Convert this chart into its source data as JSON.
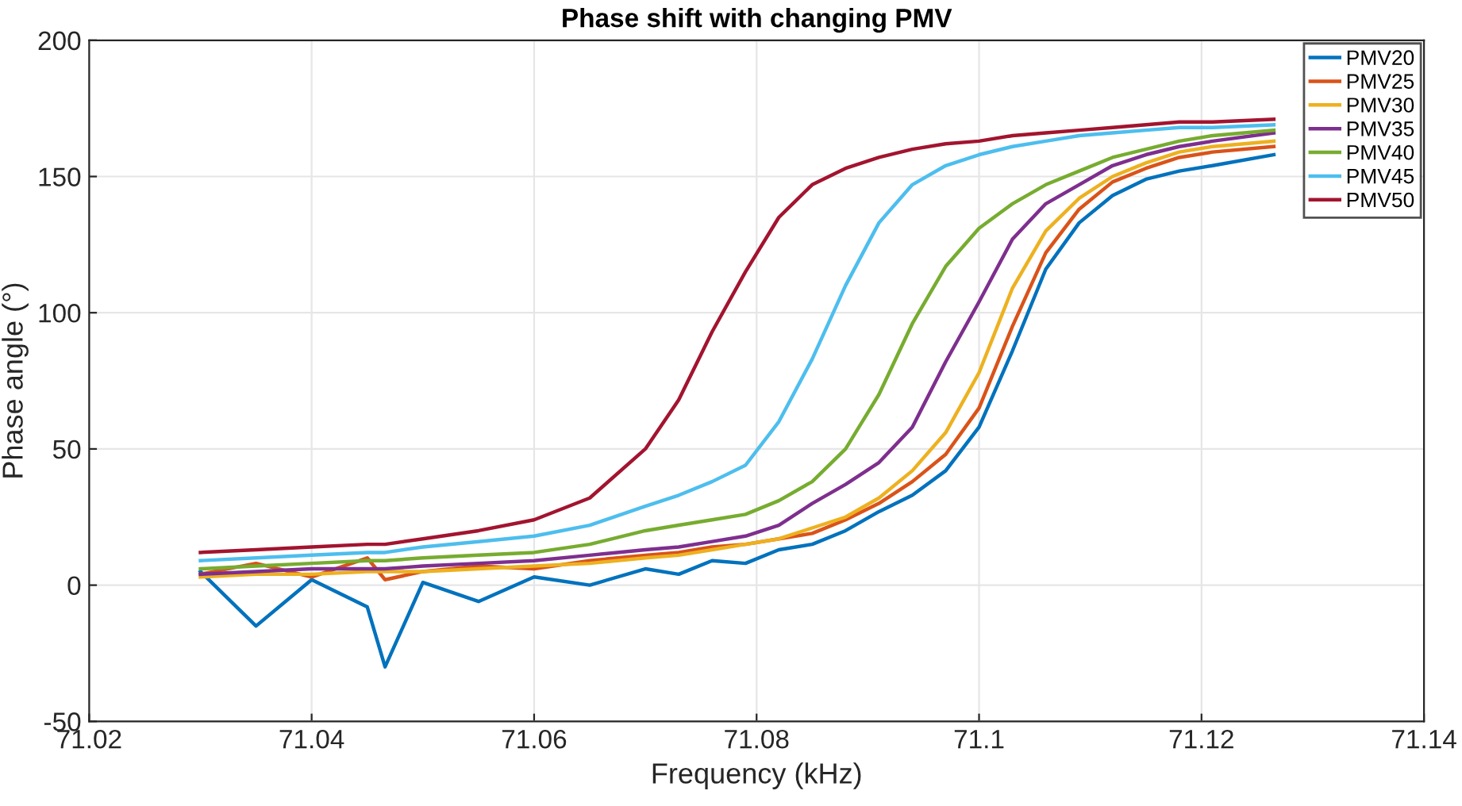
{
  "chart_data": {
    "type": "line",
    "title": "Phase shift with changing PMV",
    "xlabel": "Frequency (kHz)",
    "ylabel": "Phase angle (°)",
    "x": [
      71.03,
      71.035,
      71.04,
      71.045,
      71.0466,
      71.05,
      71.055,
      71.06,
      71.065,
      71.07,
      71.073,
      71.076,
      71.079,
      71.082,
      71.085,
      71.088,
      71.091,
      71.094,
      71.097,
      71.1,
      71.103,
      71.106,
      71.109,
      71.112,
      71.115,
      71.118,
      71.121,
      71.1265
    ],
    "series": [
      {
        "name": "PMV20",
        "color": "#0072bd",
        "values": [
          5,
          -15,
          2,
          -8,
          -30,
          1,
          -6,
          3,
          0,
          6,
          4,
          9,
          8,
          13,
          15,
          20,
          27,
          33,
          42,
          58,
          86,
          116,
          133,
          143,
          149,
          152,
          154,
          158
        ]
      },
      {
        "name": "PMV25",
        "color": "#d95319",
        "values": [
          4,
          8,
          3,
          10,
          2,
          5,
          7,
          6,
          9,
          11,
          12,
          14,
          15,
          17,
          19,
          24,
          30,
          38,
          48,
          65,
          95,
          122,
          138,
          148,
          153,
          157,
          159,
          161
        ]
      },
      {
        "name": "PMV30",
        "color": "#edb120",
        "values": [
          3,
          4,
          4,
          5,
          5,
          5,
          6,
          7,
          8,
          10,
          11,
          13,
          15,
          17,
          21,
          25,
          32,
          42,
          56,
          78,
          109,
          130,
          142,
          150,
          155,
          159,
          161,
          163
        ]
      },
      {
        "name": "PMV35",
        "color": "#7e2f8e",
        "values": [
          4,
          5,
          6,
          6,
          6,
          7,
          8,
          9,
          11,
          13,
          14,
          16,
          18,
          22,
          30,
          37,
          45,
          58,
          82,
          104,
          127,
          140,
          147,
          154,
          158,
          161,
          163,
          166
        ]
      },
      {
        "name": "PMV40",
        "color": "#77ac30",
        "values": [
          6,
          7,
          8,
          9,
          9,
          10,
          11,
          12,
          15,
          20,
          22,
          24,
          26,
          31,
          38,
          50,
          70,
          96,
          117,
          131,
          140,
          147,
          152,
          157,
          160,
          163,
          165,
          167
        ]
      },
      {
        "name": "PMV45",
        "color": "#4dbeee",
        "values": [
          9,
          10,
          11,
          12,
          12,
          14,
          16,
          18,
          22,
          29,
          33,
          38,
          44,
          60,
          83,
          110,
          133,
          147,
          154,
          158,
          161,
          163,
          165,
          166,
          167,
          168,
          168,
          169
        ]
      },
      {
        "name": "PMV50",
        "color": "#a2142f",
        "values": [
          12,
          13,
          14,
          15,
          15,
          17,
          20,
          24,
          32,
          50,
          68,
          93,
          115,
          135,
          147,
          153,
          157,
          160,
          162,
          163,
          165,
          166,
          167,
          168,
          169,
          170,
          170,
          171
        ]
      }
    ],
    "xlim": [
      71.02,
      71.14
    ],
    "xticks": [
      {
        "value": 71.02,
        "label": "71.02"
      },
      {
        "value": 71.04,
        "label": "71.04"
      },
      {
        "value": 71.06,
        "label": "71.06"
      },
      {
        "value": 71.08,
        "label": "71.08"
      },
      {
        "value": 71.1,
        "label": "71.1"
      },
      {
        "value": 71.12,
        "label": "71.12"
      },
      {
        "value": 71.14,
        "label": "71.14"
      }
    ],
    "ylim": [
      -50,
      200
    ],
    "yticks": [
      -50,
      0,
      50,
      100,
      150,
      200
    ],
    "grid": true,
    "legend": "top right"
  }
}
